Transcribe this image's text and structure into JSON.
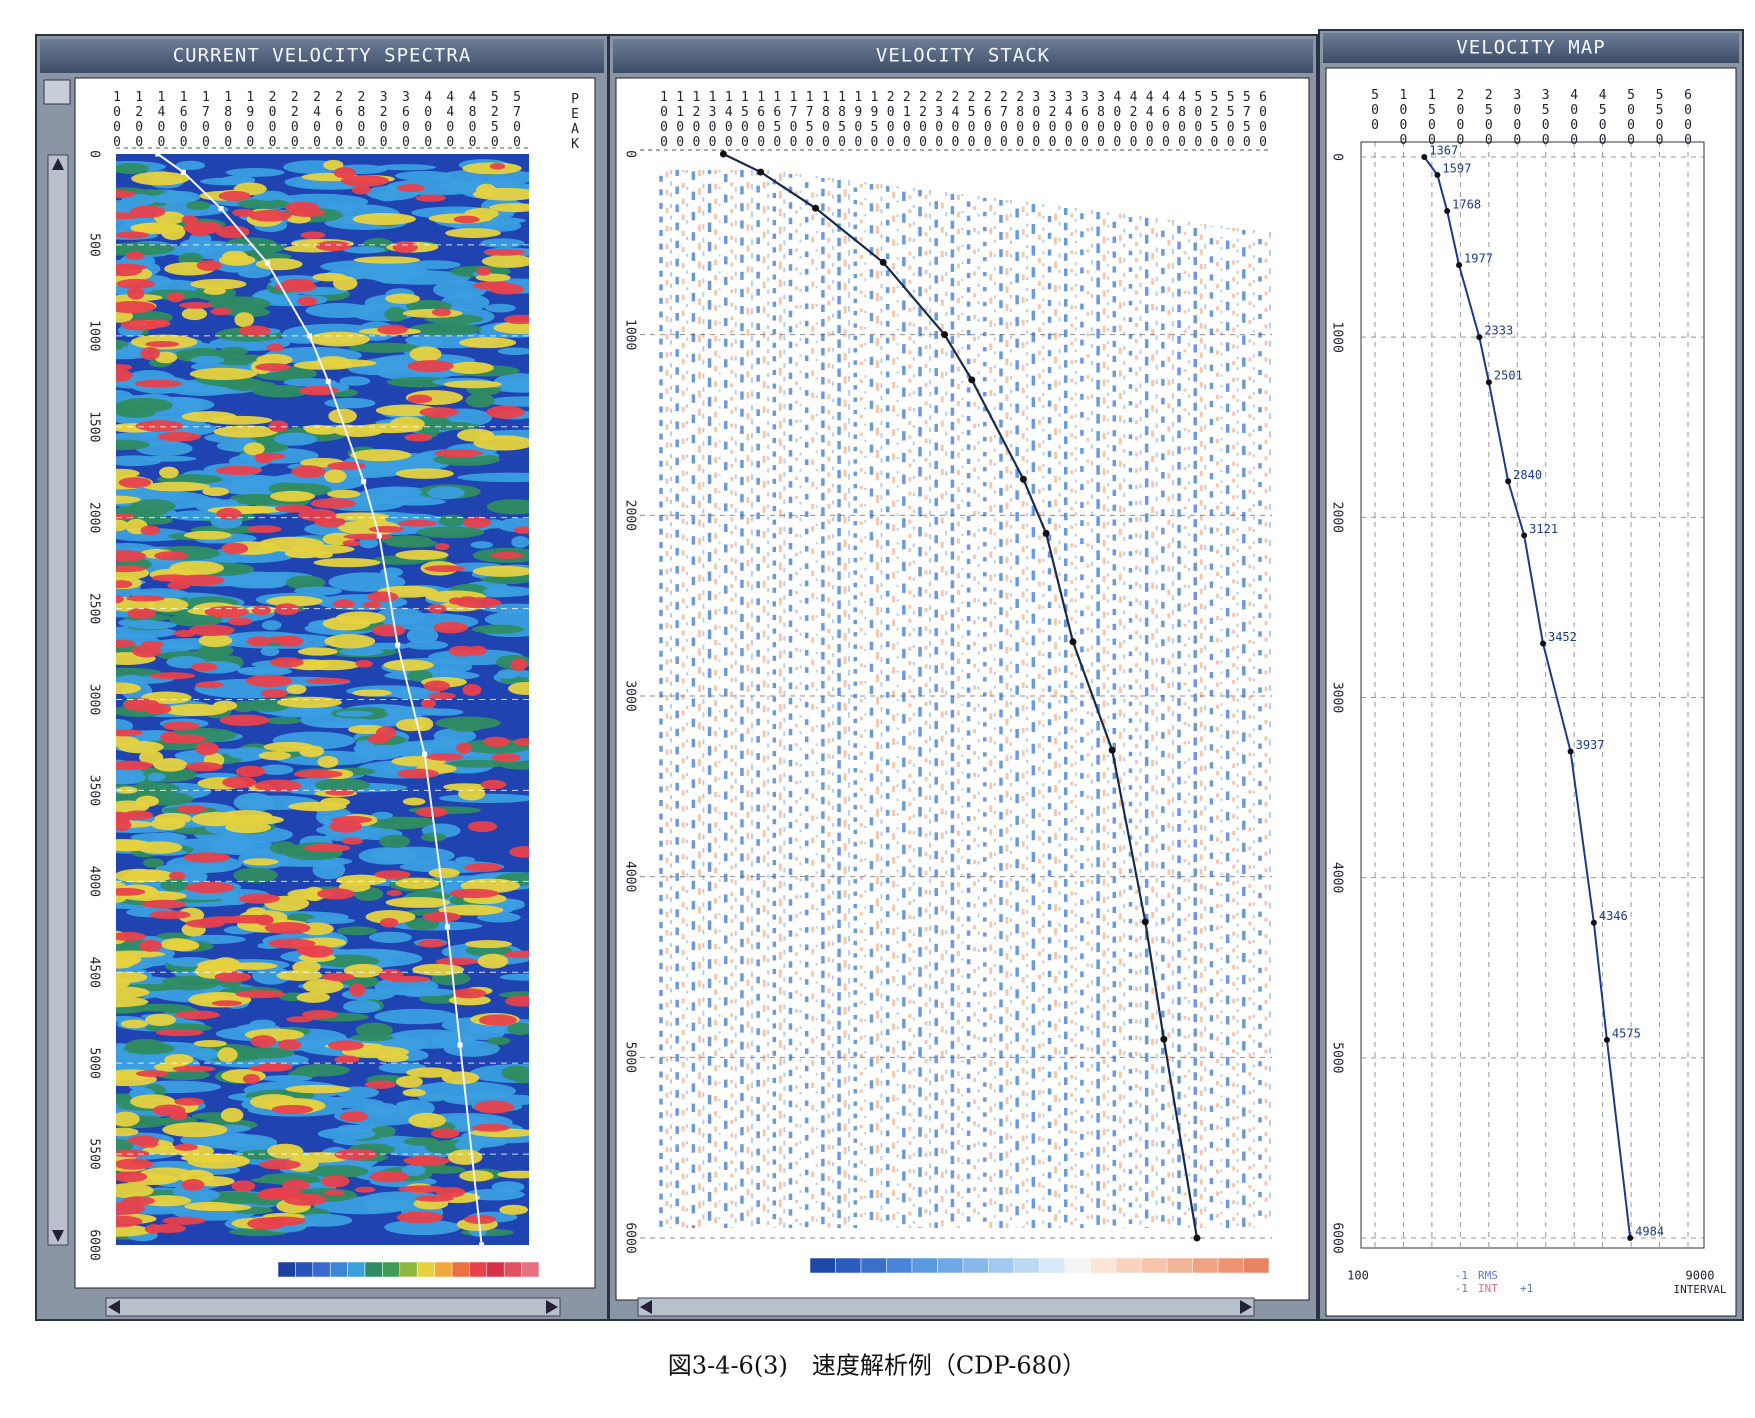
{
  "title_bars": {
    "spectra": "CURRENT VELOCITY SPECTRA",
    "stack": "VELOCITY STACK",
    "map": "VELOCITY MAP"
  },
  "spectra": {
    "velocity_header": [
      1000,
      1200,
      1400,
      1600,
      1700,
      1800,
      1900,
      2000,
      2200,
      2400,
      2600,
      2800,
      3200,
      3600,
      4000,
      4400,
      4800,
      5250,
      5700
    ],
    "peak_label": "PEAK",
    "tlim": [
      0,
      6000
    ],
    "time_ticks": [
      0,
      500,
      1000,
      1500,
      2000,
      2500,
      3000,
      3500,
      4000,
      4500,
      5000,
      5500,
      6000
    ]
  },
  "stack": {
    "velocity_header": [
      1000,
      1100,
      1200,
      1300,
      1400,
      1500,
      1600,
      1650,
      1700,
      1750,
      1800,
      1850,
      1900,
      1950,
      2000,
      2100,
      2200,
      2300,
      2400,
      2500,
      2600,
      2700,
      2800,
      3000,
      3200,
      3400,
      3600,
      3800,
      4000,
      4200,
      4400,
      4600,
      4800,
      5000,
      5250,
      5500,
      5750,
      6000
    ],
    "tlim": [
      0,
      6000
    ],
    "time_ticks": [
      0,
      1000,
      2000,
      3000,
      4000,
      5000,
      6000
    ]
  },
  "map": {
    "velocity_header": [
      500,
      1000,
      1500,
      2000,
      2500,
      3000,
      3500,
      4000,
      4500,
      5000,
      5500,
      6000
    ],
    "xlim": [
      500,
      6000
    ],
    "tlim": [
      0,
      6000
    ],
    "time_ticks": [
      0,
      1000,
      2000,
      3000,
      4000,
      5000,
      6000
    ],
    "picks": [
      {
        "time": 0,
        "velocity": 1367
      },
      {
        "time": 100,
        "velocity": 1597
      },
      {
        "time": 300,
        "velocity": 1768
      },
      {
        "time": 600,
        "velocity": 1977
      },
      {
        "time": 1000,
        "velocity": 2333
      },
      {
        "time": 1250,
        "velocity": 2501
      },
      {
        "time": 1800,
        "velocity": 2840
      },
      {
        "time": 2100,
        "velocity": 3121
      },
      {
        "time": 2700,
        "velocity": 3452
      },
      {
        "time": 3300,
        "velocity": 3937
      },
      {
        "time": 4250,
        "velocity": 4346
      },
      {
        "time": 4900,
        "velocity": 4575
      },
      {
        "time": 6000,
        "velocity": 4984
      }
    ],
    "footer": {
      "min": 100,
      "max": 9000,
      "rows": [
        {
          "value": -1,
          "label": "RMS"
        },
        {
          "value": -1,
          "label": "INT",
          "extra": "+1"
        }
      ],
      "interval_label": "INTERVAL"
    }
  },
  "caption": "図3-4-6(3)　速度解析例（CDP-680）"
}
